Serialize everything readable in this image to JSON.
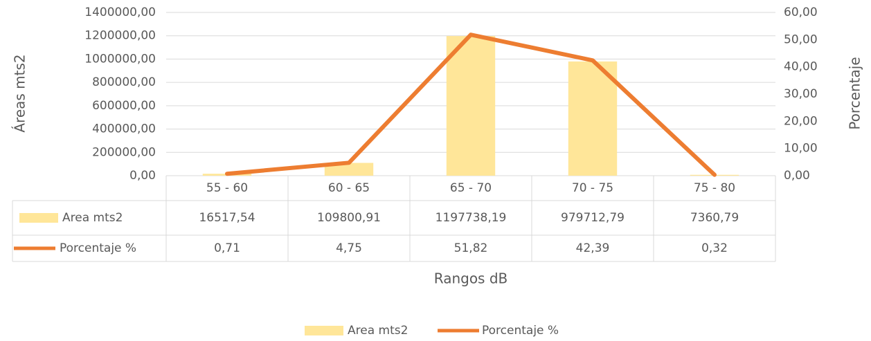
{
  "chart_data": {
    "type": "combo",
    "x_label": "Rangos dB",
    "y_label": "Áreas mts2",
    "y2_label": "Porcentaje",
    "categories": [
      "55 - 60",
      "60 - 65",
      "65 - 70",
      "70 - 75",
      "75 - 80"
    ],
    "series": [
      {
        "name": "Area mts2",
        "type": "bar",
        "color": "#FFE699",
        "values": [
          16517.54,
          109800.91,
          1197738.19,
          979712.79,
          7360.79
        ],
        "value_labels": [
          "16517,54",
          "109800,91",
          "1197738,19",
          "979712,79",
          "7360,79"
        ]
      },
      {
        "name": "Porcentaje %",
        "type": "line",
        "axis": "y2",
        "color": "#ED7D31",
        "values": [
          0.71,
          4.75,
          51.82,
          42.39,
          0.32
        ],
        "value_labels": [
          "0,71",
          "4,75",
          "51,82",
          "42,39",
          "0,32"
        ]
      }
    ],
    "ylim": [
      0,
      1400000
    ],
    "yticks": [
      {
        "value": 0,
        "label": "0,00"
      },
      {
        "value": 200000,
        "label": "200000,00"
      },
      {
        "value": 400000,
        "label": "400000,00"
      },
      {
        "value": 600000,
        "label": "600000,00"
      },
      {
        "value": 800000,
        "label": "800000,00"
      },
      {
        "value": 1000000,
        "label": "1000000,00"
      },
      {
        "value": 1200000,
        "label": "1200000,00"
      },
      {
        "value": 1400000,
        "label": "1400000,00"
      }
    ],
    "y2lim": [
      0,
      60
    ],
    "y2ticks": [
      {
        "value": 0,
        "label": "0,00"
      },
      {
        "value": 10,
        "label": "10,00"
      },
      {
        "value": 20,
        "label": "20,00"
      },
      {
        "value": 30,
        "label": "30,00"
      },
      {
        "value": 40,
        "label": "40,00"
      },
      {
        "value": 50,
        "label": "50,00"
      },
      {
        "value": 60,
        "label": "60,00"
      }
    ],
    "grid": true,
    "legend": "bottom"
  }
}
